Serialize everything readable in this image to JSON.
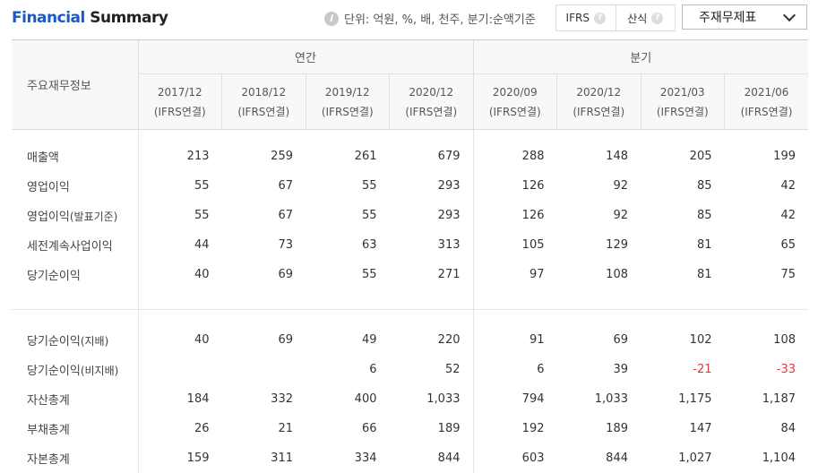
{
  "header": {
    "title_part1": "Financial",
    "title_part2": " Summary",
    "unit_text": "단위: 억원, %, 배, 천주, 분기:순액기준",
    "toggle_ifrs": "IFRS",
    "toggle_calc": "산식",
    "select_value": "주재무제표"
  },
  "table": {
    "row_header_label": "주요재무정보",
    "group_annual": "연간",
    "group_quarter": "분기",
    "columns": [
      {
        "period": "2017/12",
        "basis": "(IFRS연결)"
      },
      {
        "period": "2018/12",
        "basis": "(IFRS연결)"
      },
      {
        "period": "2019/12",
        "basis": "(IFRS연결)"
      },
      {
        "period": "2020/12",
        "basis": "(IFRS연결)"
      },
      {
        "period": "2020/09",
        "basis": "(IFRS연결)"
      },
      {
        "period": "2020/12",
        "basis": "(IFRS연결)"
      },
      {
        "period": "2021/03",
        "basis": "(IFRS연결)"
      },
      {
        "period": "2021/06",
        "basis": "(IFRS연결)"
      }
    ],
    "rows": [
      {
        "label": "매출액",
        "sub": "",
        "values": [
          "213",
          "259",
          "261",
          "679",
          "288",
          "148",
          "205",
          "199"
        ]
      },
      {
        "label": "영업이익",
        "sub": "",
        "values": [
          "55",
          "67",
          "55",
          "293",
          "126",
          "92",
          "85",
          "42"
        ]
      },
      {
        "label": "영업이익",
        "sub": "(발표기준)",
        "values": [
          "55",
          "67",
          "55",
          "293",
          "126",
          "92",
          "85",
          "42"
        ]
      },
      {
        "label": "세전계속사업이익",
        "sub": "",
        "values": [
          "44",
          "73",
          "63",
          "313",
          "105",
          "129",
          "81",
          "65"
        ]
      },
      {
        "label": "당기순이익",
        "sub": "",
        "values": [
          "40",
          "69",
          "55",
          "271",
          "97",
          "108",
          "81",
          "75"
        ]
      },
      {
        "label": "당기순이익",
        "sub": "(지배)",
        "values": [
          "40",
          "69",
          "49",
          "220",
          "91",
          "69",
          "102",
          "108"
        ]
      },
      {
        "label": "당기순이익",
        "sub": "(비지배)",
        "values": [
          "",
          "",
          "6",
          "52",
          "6",
          "39",
          "-21",
          "-33"
        ]
      },
      {
        "label": "자산총계",
        "sub": "",
        "values": [
          "184",
          "332",
          "400",
          "1,033",
          "794",
          "1,033",
          "1,175",
          "1,187"
        ]
      },
      {
        "label": "부채총계",
        "sub": "",
        "values": [
          "26",
          "21",
          "66",
          "189",
          "192",
          "189",
          "147",
          "84"
        ]
      },
      {
        "label": "자본총계",
        "sub": "",
        "values": [
          "159",
          "311",
          "334",
          "844",
          "603",
          "844",
          "1,027",
          "1,104"
        ]
      }
    ]
  },
  "colors": {
    "brand": "#1a59c9",
    "negative": "#e0393e"
  }
}
